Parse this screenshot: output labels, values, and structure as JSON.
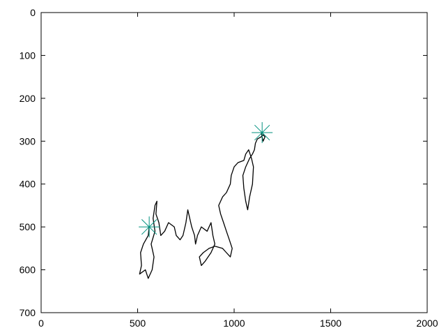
{
  "chart_data": {
    "type": "line",
    "title": "",
    "xlabel": "",
    "ylabel": "",
    "xlim": [
      0,
      2000
    ],
    "ylim": [
      700,
      0
    ],
    "y_axis_inverted": true,
    "grid": false,
    "x_ticks": [
      "0",
      "500",
      "1000",
      "1500",
      "2000"
    ],
    "y_ticks": [
      "0",
      "100",
      "200",
      "300",
      "400",
      "500",
      "600",
      "700"
    ],
    "series": [
      {
        "color": "#000000",
        "points": [
          [
            560,
            500
          ],
          [
            555,
            520
          ],
          [
            530,
            540
          ],
          [
            515,
            560
          ],
          [
            520,
            590
          ],
          [
            510,
            610
          ],
          [
            540,
            600
          ],
          [
            555,
            620
          ],
          [
            575,
            600
          ],
          [
            585,
            570
          ],
          [
            570,
            540
          ],
          [
            590,
            510
          ],
          [
            580,
            480
          ],
          [
            590,
            450
          ],
          [
            600,
            440
          ],
          [
            595,
            470
          ],
          [
            610,
            490
          ],
          [
            620,
            520
          ],
          [
            640,
            510
          ],
          [
            660,
            490
          ],
          [
            690,
            500
          ],
          [
            700,
            520
          ],
          [
            720,
            530
          ],
          [
            735,
            520
          ],
          [
            750,
            490
          ],
          [
            760,
            460
          ],
          [
            770,
            480
          ],
          [
            780,
            500
          ],
          [
            795,
            520
          ],
          [
            800,
            540
          ],
          [
            810,
            520
          ],
          [
            830,
            500
          ],
          [
            860,
            510
          ],
          [
            880,
            490
          ],
          [
            890,
            520
          ],
          [
            900,
            540
          ],
          [
            880,
            560
          ],
          [
            850,
            580
          ],
          [
            830,
            590
          ],
          [
            820,
            570
          ],
          [
            840,
            560
          ],
          [
            870,
            550
          ],
          [
            900,
            545
          ],
          [
            940,
            550
          ],
          [
            960,
            560
          ],
          [
            980,
            570
          ],
          [
            990,
            550
          ],
          [
            975,
            530
          ],
          [
            960,
            510
          ],
          [
            945,
            490
          ],
          [
            930,
            470
          ],
          [
            920,
            450
          ],
          [
            940,
            430
          ],
          [
            960,
            420
          ],
          [
            980,
            400
          ],
          [
            985,
            380
          ],
          [
            1000,
            360
          ],
          [
            1020,
            350
          ],
          [
            1050,
            345
          ],
          [
            1060,
            330
          ],
          [
            1075,
            320
          ],
          [
            1090,
            340
          ],
          [
            1100,
            360
          ],
          [
            1095,
            400
          ],
          [
            1080,
            430
          ],
          [
            1070,
            460
          ],
          [
            1060,
            440
          ],
          [
            1050,
            410
          ],
          [
            1045,
            380
          ],
          [
            1060,
            360
          ],
          [
            1080,
            340
          ],
          [
            1095,
            330
          ],
          [
            1105,
            320
          ],
          [
            1110,
            305
          ],
          [
            1120,
            295
          ],
          [
            1140,
            290
          ],
          [
            1150,
            285
          ],
          [
            1160,
            290
          ],
          [
            1150,
            300
          ],
          [
            1140,
            280
          ]
        ]
      },
      {
        "color": "#00907e",
        "marker": "star",
        "points": [
          [
            560,
            500
          ],
          [
            1145,
            280
          ]
        ]
      }
    ]
  }
}
